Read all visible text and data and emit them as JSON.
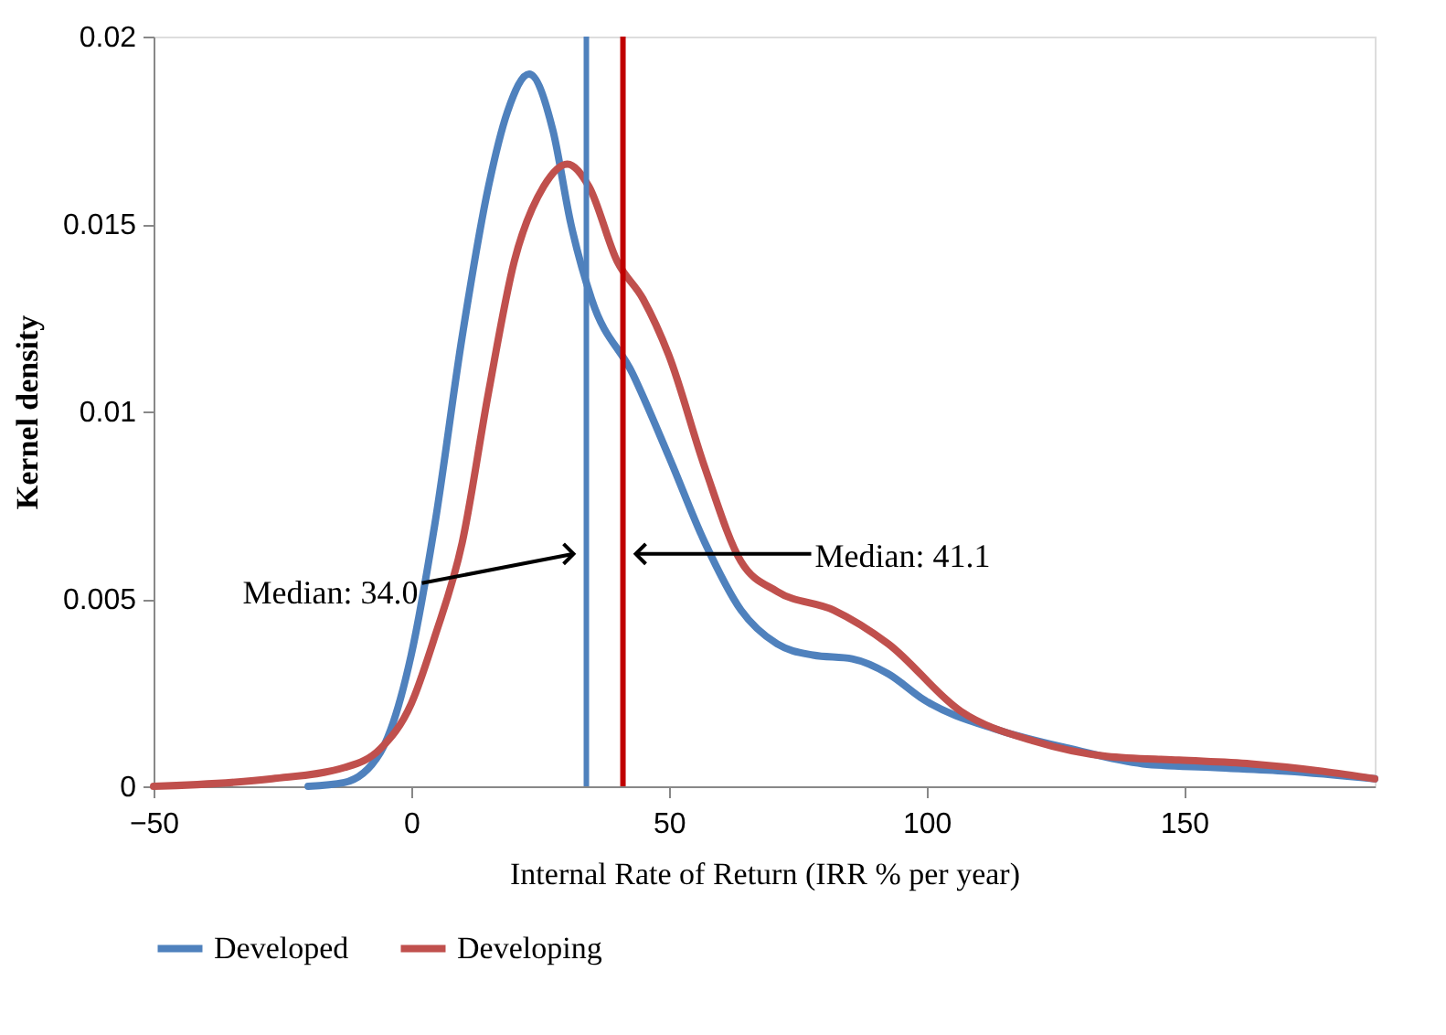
{
  "chart_data": {
    "type": "line",
    "xlabel": "Internal Rate of Return (IRR % per year)",
    "ylabel": "Kernel density",
    "xlim": [
      -50,
      187
    ],
    "xticks": [
      -50,
      0,
      50,
      100,
      150
    ],
    "ylim": [
      0,
      0.02
    ],
    "yticks": [
      0,
      0.005,
      0.01,
      0.015,
      0.02
    ],
    "grid": false,
    "legend": "bottom",
    "line_style": "solid",
    "series": [
      {
        "name": "Developed",
        "color": "#4f81bd",
        "x": [
          -20,
          -13,
          -6,
          0,
          4.6,
          9.9,
          15,
          18.7,
          22.9,
          27.5,
          31,
          35,
          43,
          50,
          57,
          64,
          71,
          78,
          85.6,
          92.6,
          99.6,
          114,
          128,
          142,
          156,
          170,
          187
        ],
        "values": [
          0,
          0.0001,
          0.0009,
          0.0035,
          0.007,
          0.012,
          0.016,
          0.018,
          0.019,
          0.0175,
          0.015,
          0.013,
          0.011,
          0.0088,
          0.0065,
          0.0047,
          0.0038,
          0.0035,
          0.0034,
          0.003,
          0.0023,
          0.0015,
          0.001,
          0.0006,
          0.0005,
          0.0004,
          0.0002
        ]
      },
      {
        "name": "Developing",
        "color": "#c0504d",
        "x": [
          -50,
          -27,
          -13,
          -6,
          0,
          4.6,
          9.9,
          15,
          20,
          25.7,
          30.3,
          34.5,
          40,
          45,
          50,
          57,
          64,
          71,
          82,
          92.6,
          106.7,
          121,
          135,
          149,
          163,
          177,
          187
        ],
        "values": [
          0,
          0.0002,
          0.0005,
          0.001,
          0.0022,
          0.004,
          0.0065,
          0.0105,
          0.014,
          0.016,
          0.0166,
          0.016,
          0.014,
          0.013,
          0.0115,
          0.0085,
          0.006,
          0.0052,
          0.0047,
          0.0038,
          0.002,
          0.0012,
          0.0008,
          0.0007,
          0.0006,
          0.0004,
          0.0002
        ]
      }
    ],
    "ref_lines": [
      {
        "axis": "x",
        "value": 34.0,
        "color": "#4f81bd"
      },
      {
        "axis": "x",
        "value": 41.1,
        "color": "#c00000"
      }
    ],
    "annotations": [
      "Median: 34.0",
      "Median: 41.1"
    ]
  }
}
